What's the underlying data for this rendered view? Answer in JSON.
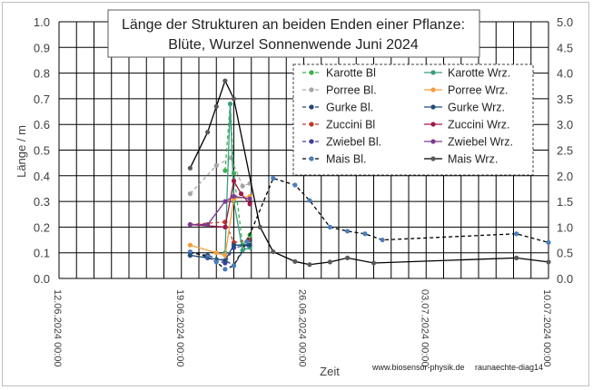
{
  "chart_data": {
    "type": "scatter",
    "title_lines": [
      "Länge der Strukturen an  beiden Enden einer Pflanze:",
      "Blüte, Wurzel     Sonnenwende  Juni 2024"
    ],
    "ylabel": "Länge / m",
    "xlabel": "Zeit",
    "footer_left": "www.biosensor-physik.de",
    "footer_right": "raunaechte-diag14",
    "ylim": [
      0,
      1.0
    ],
    "y2lim": [
      0,
      5.0
    ],
    "yticks": [
      "0.0",
      "0.1",
      "0.2",
      "0.3",
      "0.4",
      "0.5",
      "0.6",
      "0.7",
      "0.8",
      "0.9",
      "1.0"
    ],
    "y2ticks": [
      "0.0",
      "0.5",
      "1.0",
      "1.5",
      "2.0",
      "2.5",
      "3.0",
      "3.5",
      "4.0",
      "4.5",
      "5.0"
    ],
    "xlim": [
      "2024-06-12",
      "2024-07-10"
    ],
    "xticks": [
      "12.06.2024 00:00",
      "19.06.2024 00:00",
      "26.06.2024 00:00",
      "03.07.2024 00:00",
      "10.07.2024 00:00"
    ],
    "grid": true,
    "legend_position": "top-right",
    "series": [
      {
        "name": "Karotte Bl",
        "color": "#3cb34a",
        "dash": true,
        "axis": "left",
        "x": [
          "2024-06-21 12:00",
          "2024-06-21 19:00",
          "2024-06-22 00:00",
          "2024-06-22 12:00",
          "2024-06-22 22:00"
        ],
        "y": [
          0.42,
          0.68,
          0.41,
          0.13,
          0.17
        ]
      },
      {
        "name": "Porree Bl.",
        "color": "#a6a6a6",
        "dash": true,
        "axis": "left",
        "x": [
          "2024-06-19 12:00",
          "2024-06-21 00:00",
          "2024-06-21 20:00",
          "2024-06-22 12:00",
          "2024-06-22 22:00"
        ],
        "y": [
          0.33,
          0.44,
          0.47,
          0.36,
          0.37
        ]
      },
      {
        "name": "Gurke Bl.",
        "color": "#264478",
        "dash": true,
        "axis": "left",
        "x": [
          "2024-06-19 12:00",
          "2024-06-20 12:00",
          "2024-06-21 12:00",
          "2024-06-22 00:00",
          "2024-06-22 22:00"
        ],
        "y": [
          0.1,
          0.09,
          0.07,
          0.05,
          0.15
        ]
      },
      {
        "name": "Zuccini Bl",
        "color": "#c0392b",
        "dash": true,
        "axis": "left",
        "x": [
          "2024-06-19 12:00",
          "2024-06-21 12:00",
          "2024-06-22 00:00",
          "2024-06-22 20:00"
        ],
        "y": [
          0.21,
          0.22,
          0.14,
          0.15
        ]
      },
      {
        "name": "Zwiebel Bl.",
        "color": "#3f3f9f",
        "dash": true,
        "axis": "left",
        "x": [
          "2024-06-19 12:00",
          "2024-06-20 12:00",
          "2024-06-21 12:00",
          "2024-06-22 00:00",
          "2024-06-22 20:00"
        ],
        "y": [
          0.09,
          0.08,
          0.06,
          0.12,
          0.13
        ]
      },
      {
        "name": "Mais Bl.",
        "color": "#4a7ebb",
        "dash": true,
        "axis": "right",
        "x": [
          "2024-06-19 12:00",
          "2024-06-20 12:00",
          "2024-06-21 00:00",
          "2024-06-21 12:00",
          "2024-06-22 00:00",
          "2024-06-22 18:00",
          "2024-06-24 06:00",
          "2024-06-25 12:00",
          "2024-06-26 08:00",
          "2024-06-27 12:00",
          "2024-06-28 12:00",
          "2024-06-29 12:00",
          "2024-06-30 12:00",
          "2024-07-08 04:00",
          "2024-07-10 00:00"
        ],
        "y": [
          0.52,
          0.42,
          0.32,
          0.18,
          0.25,
          0.72,
          1.95,
          1.82,
          1.52,
          1.0,
          0.92,
          0.87,
          0.75,
          0.87,
          0.7
        ]
      },
      {
        "name": "Karotte Wrz.",
        "color": "#3a9d7f",
        "dash": false,
        "axis": "left",
        "x": [
          "2024-06-21 12:00",
          "2024-06-21 19:00",
          "2024-06-22 00:00",
          "2024-06-22 12:00",
          "2024-06-22 22:00"
        ],
        "y": [
          0.1,
          0.68,
          0.3,
          0.11,
          0.12
        ]
      },
      {
        "name": "Porree Wrz.",
        "color": "#f59d3d",
        "dash": false,
        "axis": "left",
        "x": [
          "2024-06-19 12:00",
          "2024-06-21 00:00",
          "2024-06-21 12:00",
          "2024-06-22 00:00",
          "2024-06-22 22:00"
        ],
        "y": [
          0.13,
          0.1,
          0.09,
          0.31,
          0.32
        ]
      },
      {
        "name": "Gurke Wrz.",
        "color": "#1f4e79",
        "dash": false,
        "axis": "left",
        "x": [
          "2024-06-19 12:00",
          "2024-06-21 12:00",
          "2024-06-22 00:00",
          "2024-06-22 22:00"
        ],
        "y": [
          0.09,
          0.07,
          0.13,
          0.13
        ]
      },
      {
        "name": "Zuccini Wrz.",
        "color": "#a0174b",
        "dash": false,
        "axis": "left",
        "x": [
          "2024-06-19 12:00",
          "2024-06-21 12:00",
          "2024-06-22 00:00",
          "2024-06-22 10:00",
          "2024-06-22 22:00"
        ],
        "y": [
          0.21,
          0.2,
          0.38,
          0.33,
          0.29
        ]
      },
      {
        "name": "Zwiebel Wrz.",
        "color": "#7b3c8f",
        "dash": false,
        "axis": "left",
        "x": [
          "2024-06-19 12:00",
          "2024-06-20 12:00",
          "2024-06-21 12:00",
          "2024-06-22 00:00",
          "2024-06-22 22:00"
        ],
        "y": [
          0.21,
          0.21,
          0.3,
          0.32,
          0.31
        ]
      },
      {
        "name": "Mais Wrz.",
        "color": "#595959",
        "dash": false,
        "axis": "right",
        "x": [
          "2024-06-19 12:00",
          "2024-06-20 12:00",
          "2024-06-21 00:00",
          "2024-06-21 12:00",
          "2024-06-22 00:00",
          "2024-06-23 12:00",
          "2024-06-24 06:00",
          "2024-06-25 12:00",
          "2024-06-26 08:00",
          "2024-06-27 12:00",
          "2024-06-28 12:00",
          "2024-06-30 00:00",
          "2024-07-08 04:00",
          "2024-07-10 00:00"
        ],
        "y": [
          2.15,
          2.85,
          3.35,
          3.85,
          3.5,
          1.0,
          0.52,
          0.33,
          0.27,
          0.32,
          0.4,
          0.3,
          0.4,
          0.32
        ]
      }
    ]
  }
}
